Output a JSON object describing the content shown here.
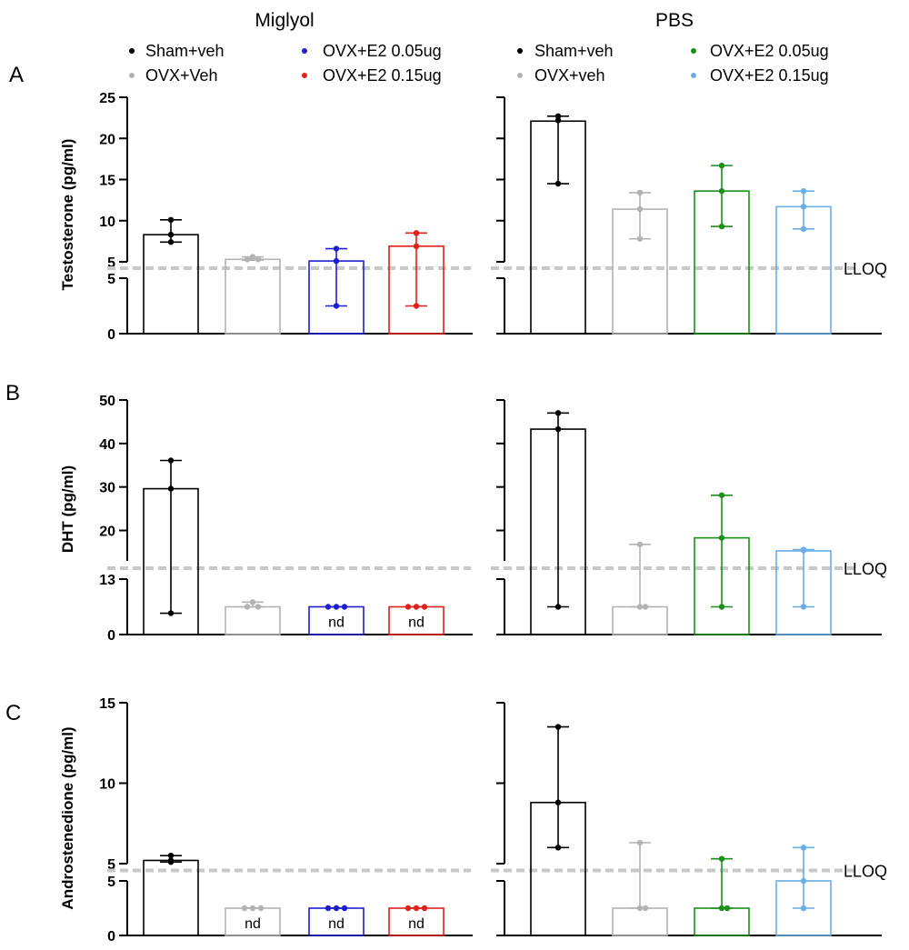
{
  "figure": {
    "columns": [
      "Miglyol",
      "PBS"
    ],
    "panel_letters": [
      "A",
      "B",
      "C"
    ],
    "lloq_label": "LLOQ",
    "nd_label": "nd"
  },
  "legend": {
    "miglyol": [
      {
        "label": "Sham+veh",
        "color": "#000000"
      },
      {
        "label": "OVX+Veh",
        "color": "#b3b3b3"
      },
      {
        "label": "OVX+E2 0.05ug",
        "color": "#1f1fd0"
      },
      {
        "label": "OVX+E2 0.15ug",
        "color": "#e0201b"
      }
    ],
    "pbs": [
      {
        "label": "Sham+veh",
        "color": "#000000"
      },
      {
        "label": "OVX+veh",
        "color": "#b3b3b3"
      },
      {
        "label": "OVX+E2 0.05ug",
        "color": "#1a8f1a"
      },
      {
        "label": "OVX+E2 0.15ug",
        "color": "#6aaee8"
      }
    ]
  },
  "chart_data": [
    {
      "type": "bar",
      "panel": "A",
      "ylabel": "Testosterone (pg/ml)",
      "axis_break": true,
      "lower_segment": {
        "ylim": [
          0,
          5
        ],
        "ticks": [
          0,
          5
        ]
      },
      "upper_segment": {
        "ylim": [
          5,
          25
        ],
        "ticks": [
          5,
          10,
          15,
          20,
          25
        ]
      },
      "lloq": 5,
      "groups": [
        {
          "column": "Miglyol",
          "group": "Sham+veh",
          "mean": 8.3,
          "points": [
            10.1,
            8.3,
            7.4
          ],
          "error": [
            7.4,
            10.1
          ],
          "nd": false
        },
        {
          "column": "Miglyol",
          "group": "OVX+Veh",
          "mean": 5.3,
          "points": [
            5.3,
            5.6,
            5.3
          ],
          "error": [
            5.2,
            5.6
          ],
          "nd": false
        },
        {
          "column": "Miglyol",
          "group": "OVX+E2 0.05ug",
          "mean": 5.1,
          "points": [
            6.6,
            5.1,
            2.5
          ],
          "error": [
            2.5,
            6.6
          ],
          "nd": false
        },
        {
          "column": "Miglyol",
          "group": "OVX+E2 0.15ug",
          "mean": 6.9,
          "points": [
            8.5,
            6.9,
            2.5
          ],
          "error": [
            2.5,
            8.5
          ],
          "nd": false
        },
        {
          "column": "PBS",
          "group": "Sham+veh",
          "mean": 22.1,
          "points": [
            22.7,
            22.2,
            14.5
          ],
          "error": [
            14.5,
            22.7
          ],
          "nd": false
        },
        {
          "column": "PBS",
          "group": "OVX+veh",
          "mean": 11.4,
          "points": [
            13.4,
            11.4,
            7.8
          ],
          "error": [
            7.8,
            13.4
          ],
          "nd": false
        },
        {
          "column": "PBS",
          "group": "OVX+E2 0.05ug",
          "mean": 13.6,
          "points": [
            16.7,
            13.6,
            9.3
          ],
          "error": [
            9.3,
            16.7
          ],
          "nd": false
        },
        {
          "column": "PBS",
          "group": "OVX+E2 0.15ug",
          "mean": 11.7,
          "points": [
            13.6,
            11.7,
            9.0
          ],
          "error": [
            9.0,
            13.6
          ],
          "nd": false
        }
      ]
    },
    {
      "type": "bar",
      "panel": "B",
      "ylabel": "DHT (pg/ml)",
      "axis_break": true,
      "lower_segment": {
        "ylim": [
          0,
          13
        ],
        "ticks": [
          0,
          13
        ]
      },
      "upper_segment": {
        "ylim": [
          13,
          50
        ],
        "ticks": [
          20,
          30,
          40,
          50
        ]
      },
      "lloq": 13,
      "groups": [
        {
          "column": "Miglyol",
          "group": "Sham+veh",
          "mean": 29.6,
          "points": [
            36.1,
            29.6,
            5.0
          ],
          "error": [
            5.0,
            36.1
          ],
          "nd": false
        },
        {
          "column": "Miglyol",
          "group": "OVX+Veh",
          "mean": 6.5,
          "points": [
            6.5,
            7.6,
            6.5
          ],
          "error": [
            6.5,
            7.6
          ],
          "nd": false
        },
        {
          "column": "Miglyol",
          "group": "OVX+E2 0.05ug",
          "mean": 6.5,
          "points": [
            6.5,
            6.5,
            6.5
          ],
          "error": [
            6.5,
            6.5
          ],
          "nd": true
        },
        {
          "column": "Miglyol",
          "group": "OVX+E2 0.15ug",
          "mean": 6.5,
          "points": [
            6.5,
            6.5,
            6.5
          ],
          "error": [
            6.5,
            6.5
          ],
          "nd": true
        },
        {
          "column": "PBS",
          "group": "Sham+veh",
          "mean": 43.3,
          "points": [
            47.0,
            43.3,
            6.5
          ],
          "error": [
            6.5,
            47.0
          ],
          "nd": false
        },
        {
          "column": "PBS",
          "group": "OVX+veh",
          "mean": 6.5,
          "points": [
            16.8,
            6.5,
            6.5
          ],
          "error": [
            6.5,
            16.8
          ],
          "nd": false
        },
        {
          "column": "PBS",
          "group": "OVX+E2 0.05ug",
          "mean": 18.3,
          "points": [
            28.1,
            18.3,
            6.5
          ],
          "error": [
            6.5,
            28.1
          ],
          "nd": false
        },
        {
          "column": "PBS",
          "group": "OVX+E2 0.15ug",
          "mean": 15.3,
          "points": [
            15.6,
            15.4,
            6.5
          ],
          "error": [
            6.5,
            15.6
          ],
          "nd": false
        }
      ]
    },
    {
      "type": "bar",
      "panel": "C",
      "ylabel": "Androstenedione (pg/ml)",
      "axis_break": true,
      "lower_segment": {
        "ylim": [
          0,
          5
        ],
        "ticks": [
          0,
          5
        ]
      },
      "upper_segment": {
        "ylim": [
          5,
          15
        ],
        "ticks": [
          5,
          10,
          15
        ]
      },
      "lloq": 5,
      "groups": [
        {
          "column": "Miglyol",
          "group": "Sham+veh",
          "mean": 5.2,
          "points": [
            5.5,
            5.2,
            5.1
          ],
          "error": [
            5.1,
            5.5
          ],
          "nd": false
        },
        {
          "column": "Miglyol",
          "group": "OVX+Veh",
          "mean": 2.5,
          "points": [
            2.5,
            2.5,
            2.5
          ],
          "error": [
            2.5,
            2.5
          ],
          "nd": true
        },
        {
          "column": "Miglyol",
          "group": "OVX+E2 0.05ug",
          "mean": 2.5,
          "points": [
            2.5,
            2.5,
            2.5
          ],
          "error": [
            2.5,
            2.5
          ],
          "nd": true
        },
        {
          "column": "Miglyol",
          "group": "OVX+E2 0.15ug",
          "mean": 2.5,
          "points": [
            2.5,
            2.5,
            2.5
          ],
          "error": [
            2.5,
            2.5
          ],
          "nd": true
        },
        {
          "column": "PBS",
          "group": "Sham+veh",
          "mean": 8.8,
          "points": [
            13.5,
            8.8,
            6.0
          ],
          "error": [
            6.0,
            13.5
          ],
          "nd": false
        },
        {
          "column": "PBS",
          "group": "OVX+veh",
          "mean": 2.5,
          "points": [
            6.3,
            2.5,
            2.5
          ],
          "error": [
            2.5,
            6.3
          ],
          "nd": false
        },
        {
          "column": "PBS",
          "group": "OVX+E2 0.05ug",
          "mean": 2.5,
          "points": [
            5.3,
            2.5,
            2.5
          ],
          "error": [
            2.5,
            5.3
          ],
          "nd": false
        },
        {
          "column": "PBS",
          "group": "OVX+E2 0.15ug",
          "mean": 5.0,
          "points": [
            6.0,
            5.0,
            2.5
          ],
          "error": [
            2.5,
            6.0
          ],
          "nd": false
        }
      ]
    }
  ]
}
